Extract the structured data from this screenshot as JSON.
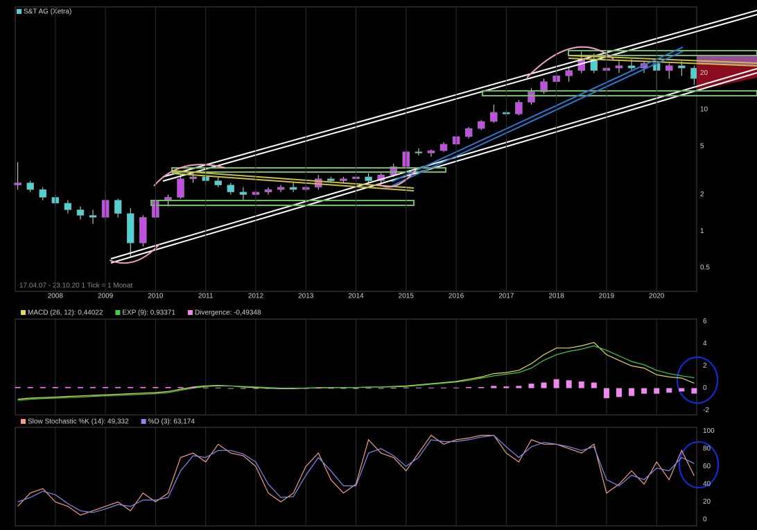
{
  "chart_data": [
    {
      "type": "candlestick",
      "title": "S&T AG (Xetra)",
      "title_color": "#50d0d0",
      "annotation": "17.04.07 - 23.10.20   1 Tick = 1 Monat",
      "x": [
        2007.25,
        2007.5,
        2007.75,
        2008,
        2008.25,
        2008.5,
        2008.75,
        2009,
        2009.25,
        2009.5,
        2009.75,
        2010,
        2010.25,
        2010.5,
        2010.75,
        2011,
        2011.25,
        2011.5,
        2011.75,
        2012,
        2012.25,
        2012.5,
        2012.75,
        2013,
        2013.25,
        2013.5,
        2013.75,
        2014,
        2014.25,
        2014.5,
        2014.75,
        2015,
        2015.25,
        2015.5,
        2015.75,
        2016,
        2016.25,
        2016.5,
        2016.75,
        2017,
        2017.25,
        2017.5,
        2017.75,
        2018,
        2018.25,
        2018.5,
        2018.75,
        2019,
        2019.25,
        2019.5,
        2019.75,
        2020,
        2020.25,
        2020.5,
        2020.75
      ],
      "open": [
        2.4,
        2.5,
        2.2,
        1.9,
        1.7,
        1.5,
        1.35,
        1.3,
        1.8,
        1.4,
        0.8,
        1.3,
        1.8,
        1.9,
        2.7,
        2.8,
        2.6,
        2.4,
        2.1,
        2.0,
        2.1,
        2.2,
        2.3,
        2.2,
        2.3,
        2.7,
        2.6,
        2.7,
        2.8,
        2.6,
        2.9,
        3.4,
        4.5,
        4.4,
        4.6,
        5.2,
        6.0,
        7.0,
        8.0,
        9.5,
        9.2,
        11.5,
        14,
        17,
        19,
        21,
        26,
        21,
        22,
        23,
        22,
        24,
        21,
        23,
        22
      ],
      "high": [
        3.7,
        2.6,
        2.3,
        2.0,
        1.8,
        1.6,
        1.5,
        2.1,
        1.85,
        1.55,
        1.35,
        1.85,
        2.0,
        3.0,
        3.1,
        3.0,
        2.8,
        2.5,
        2.3,
        2.2,
        2.3,
        2.4,
        2.5,
        2.4,
        2.9,
        2.8,
        2.8,
        2.9,
        3.0,
        3.0,
        3.6,
        4.7,
        4.8,
        4.7,
        5.4,
        6.2,
        7.2,
        8.2,
        11,
        10,
        12,
        15,
        18,
        21,
        22,
        30,
        29,
        24,
        25,
        26,
        25,
        26,
        24,
        25,
        23
      ],
      "low": [
        2.2,
        2.1,
        1.8,
        1.6,
        1.4,
        1.25,
        1.15,
        1.2,
        1.3,
        0.62,
        0.75,
        1.25,
        1.6,
        1.85,
        2.5,
        2.4,
        2.3,
        2.0,
        1.8,
        1.8,
        2.0,
        2.1,
        2.1,
        2.1,
        2.2,
        2.5,
        2.5,
        2.6,
        2.5,
        2.5,
        2.8,
        3.3,
        4.2,
        4.1,
        4.5,
        5.0,
        5.8,
        6.8,
        7.8,
        8.8,
        9.0,
        11,
        13.5,
        16,
        17,
        20,
        20,
        18,
        20,
        21,
        20,
        14,
        18,
        19,
        16
      ],
      "close": [
        2.5,
        2.2,
        1.9,
        1.7,
        1.5,
        1.35,
        1.3,
        1.8,
        1.4,
        0.8,
        1.3,
        1.8,
        1.9,
        2.7,
        2.8,
        2.6,
        2.4,
        2.1,
        2.0,
        2.1,
        2.2,
        2.3,
        2.2,
        2.3,
        2.7,
        2.6,
        2.7,
        2.8,
        2.6,
        2.9,
        3.4,
        4.5,
        4.4,
        4.6,
        5.2,
        6.0,
        7.0,
        8.0,
        9.5,
        9.2,
        11.5,
        14,
        17,
        19,
        21,
        26,
        21,
        22,
        23,
        22,
        24,
        21,
        23,
        22,
        18
      ],
      "up_color": "#c050e0",
      "down_color": "#50d0d0",
      "xlim": [
        2007.2,
        2020.8
      ],
      "xticks": [
        2008,
        2009,
        2010,
        2011,
        2012,
        2013,
        2014,
        2015,
        2016,
        2017,
        2018,
        2019,
        2020
      ],
      "ylog": true,
      "ylim": [
        0.32,
        70
      ],
      "yticks": [
        0.5,
        1,
        2,
        5,
        10,
        20
      ],
      "grid": "x"
    },
    {
      "type": "line",
      "series": [
        {
          "name": "MACD (26, 12): 0,44022",
          "color": "#e8d850",
          "values": [
            -1,
            -0.9,
            -0.85,
            -0.8,
            -0.75,
            -0.7,
            -0.65,
            -0.6,
            -0.55,
            -0.5,
            -0.45,
            -0.4,
            -0.3,
            -0.1,
            0.1,
            0.2,
            0.25,
            0.2,
            0.1,
            0.05,
            0,
            -0.05,
            -0.05,
            0,
            0.05,
            0.05,
            0.05,
            0.05,
            0.1,
            0.1,
            0.15,
            0.2,
            0.3,
            0.4,
            0.5,
            0.6,
            0.8,
            1.0,
            1.3,
            1.4,
            1.6,
            2.2,
            3.0,
            3.6,
            3.6,
            3.8,
            4.1,
            3.0,
            2.5,
            2.0,
            1.8,
            1.2,
            1.0,
            0.9,
            0.44022
          ]
        },
        {
          "name": "EXP (9): 0,93371",
          "color": "#40d040",
          "values": [
            -1.1,
            -1,
            -0.95,
            -0.9,
            -0.85,
            -0.8,
            -0.75,
            -0.7,
            -0.65,
            -0.6,
            -0.55,
            -0.5,
            -0.4,
            -0.2,
            0,
            0.15,
            0.2,
            0.2,
            0.15,
            0.1,
            0.05,
            0,
            0,
            0,
            0.02,
            0.03,
            0.04,
            0.05,
            0.08,
            0.09,
            0.12,
            0.15,
            0.25,
            0.35,
            0.45,
            0.55,
            0.7,
            0.9,
            1.1,
            1.25,
            1.4,
            1.8,
            2.5,
            3.0,
            3.3,
            3.5,
            3.8,
            3.4,
            2.9,
            2.4,
            2.1,
            1.6,
            1.3,
            1.1,
            0.93371
          ]
        },
        {
          "name": "Divergence: -0,49348",
          "color": "#ee88ee",
          "style": "bar",
          "values": [
            0.1,
            0.1,
            0.1,
            0.1,
            0.1,
            0.1,
            0.1,
            0.1,
            0.1,
            0.1,
            0.1,
            0.1,
            0.1,
            0.1,
            0.1,
            0.05,
            0.05,
            0,
            -0.05,
            -0.05,
            -0.05,
            -0.05,
            -0.05,
            0,
            0.03,
            0.02,
            0.01,
            0,
            0.02,
            0.01,
            0.03,
            0.05,
            0.05,
            0.05,
            0.05,
            0.05,
            0.1,
            0.1,
            0.2,
            0.15,
            0.2,
            0.4,
            0.5,
            0.8,
            0.7,
            0.6,
            0.5,
            -0.9,
            -0.8,
            -0.7,
            -0.5,
            -0.5,
            -0.4,
            -0.3,
            -0.49348
          ]
        }
      ],
      "ylim": [
        -2.4,
        6.2
      ],
      "yticks": [
        -2,
        0,
        2,
        4,
        6
      ],
      "grid": "x"
    },
    {
      "type": "line",
      "series": [
        {
          "name": "Slow Stochastic %K (14): 49,332",
          "color": "#f0a080",
          "values": [
            15,
            30,
            35,
            20,
            15,
            5,
            10,
            15,
            20,
            10,
            30,
            20,
            30,
            70,
            75,
            65,
            85,
            75,
            72,
            60,
            30,
            20,
            30,
            60,
            75,
            45,
            30,
            40,
            90,
            75,
            70,
            55,
            75,
            95,
            85,
            90,
            92,
            95,
            95,
            75,
            65,
            90,
            85,
            85,
            80,
            75,
            85,
            30,
            40,
            55,
            40,
            65,
            45,
            78,
            49.332
          ]
        },
        {
          "name": "%D (3): 63,174",
          "color": "#8888ee",
          "values": [
            20,
            25,
            32,
            28,
            18,
            10,
            8,
            12,
            17,
            15,
            22,
            22,
            25,
            55,
            72,
            70,
            78,
            78,
            74,
            65,
            40,
            25,
            26,
            50,
            70,
            55,
            38,
            38,
            75,
            80,
            72,
            60,
            70,
            90,
            88,
            88,
            90,
            93,
            95,
            82,
            70,
            82,
            87,
            85,
            82,
            78,
            82,
            45,
            38,
            50,
            45,
            58,
            55,
            70,
            63.174
          ]
        }
      ],
      "ylim": [
        -7,
        104
      ],
      "yticks": [
        0,
        20,
        40,
        60,
        80,
        100
      ],
      "grid": "x"
    }
  ]
}
